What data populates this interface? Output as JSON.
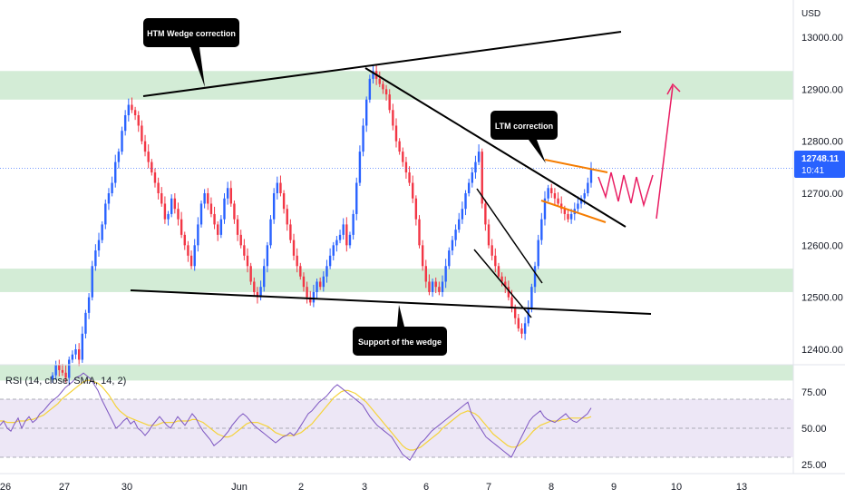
{
  "chart_data": [
    {
      "type": "candlestick",
      "currency": "USD",
      "ylim": [
        12330,
        13080
      ],
      "y_ticks": [
        "13000.00",
        "12900.00",
        "12800.00",
        "12700.00",
        "12600.00",
        "12500.00",
        "12400.00"
      ],
      "x_ticks": [
        "26",
        "27",
        "30",
        "Jun",
        "2",
        "3",
        "6",
        "7",
        "8",
        "9",
        "10",
        "13"
      ],
      "last_price": "12748.11",
      "countdown": "10:41",
      "support_zones": [
        [
          12880,
          12935
        ],
        [
          12510,
          12555
        ],
        [
          12340,
          12370
        ]
      ],
      "colors": {
        "up": "#2962ff",
        "down": "#f23645",
        "zone": "#d3ecd6",
        "projection": "#e91e63",
        "flag": "#f57c00",
        "price_line": "#2962ff"
      },
      "annotations": [
        "HTM Wedge correction",
        "LTM correction",
        "Support of the wedge"
      ],
      "closes": [
        12350,
        12370,
        12360,
        12355,
        12345,
        12380,
        12390,
        12400,
        12380,
        12430,
        12470,
        12500,
        12560,
        12590,
        12610,
        12640,
        12680,
        12700,
        12720,
        12760,
        12780,
        12820,
        12850,
        12870,
        12860,
        12850,
        12830,
        12800,
        12780,
        12760,
        12740,
        12720,
        12700,
        12680,
        12650,
        12660,
        12690,
        12670,
        12650,
        12620,
        12600,
        12580,
        12560,
        12600,
        12640,
        12680,
        12700,
        12680,
        12660,
        12640,
        12620,
        12650,
        12690,
        12710,
        12680,
        12650,
        12620,
        12600,
        12580,
        12560,
        12530,
        12510,
        12500,
        12520,
        12560,
        12600,
        12650,
        12700,
        12720,
        12700,
        12670,
        12640,
        12610,
        12580,
        12560,
        12540,
        12520,
        12500,
        12490,
        12510,
        12530,
        12520,
        12540,
        12560,
        12580,
        12600,
        12610,
        12620,
        12640,
        12600,
        12620,
        12660,
        12720,
        12780,
        12830,
        12880,
        12920,
        12935,
        12920,
        12910,
        12900,
        12890,
        12860,
        12830,
        12800,
        12780,
        12760,
        12740,
        12720,
        12690,
        12650,
        12600,
        12560,
        12530,
        12510,
        12530,
        12520,
        12510,
        12530,
        12560,
        12590,
        12610,
        12630,
        12650,
        12670,
        12700,
        12720,
        12740,
        12760,
        12780,
        12680,
        12640,
        12600,
        12580,
        12560,
        12540,
        12530,
        12520,
        12500,
        12480,
        12460,
        12440,
        12430,
        12450,
        12480,
        12520,
        12560,
        12610,
        12650,
        12690,
        12710,
        12700,
        12690,
        12680,
        12670,
        12660,
        12650,
        12660,
        12670,
        12680,
        12690,
        12700,
        12720,
        12748
      ],
      "rsi": {
        "title": "RSI (14, close, SMA, 14, 2)",
        "ylim": [
          20,
          95
        ],
        "y_ticks": [
          "75.00",
          "50.00",
          "25.00"
        ],
        "band": [
          30,
          70
        ],
        "colors": {
          "rsi": "#7e57c2",
          "sma": "#f5d33a",
          "band": "#ede7f6"
        },
        "values": [
          52,
          55,
          50,
          48,
          53,
          57,
          50,
          55,
          58,
          54,
          56,
          60,
          62,
          65,
          68,
          70,
          72,
          75,
          78,
          80,
          82,
          85,
          86,
          88,
          86,
          84,
          80,
          76,
          70,
          65,
          60,
          55,
          50,
          52,
          55,
          57,
          53,
          55,
          50,
          48,
          45,
          48,
          52,
          55,
          58,
          55,
          52,
          50,
          54,
          58,
          55,
          52,
          56,
          60,
          57,
          52,
          48,
          45,
          42,
          38,
          40,
          42,
          45,
          48,
          52,
          55,
          58,
          60,
          58,
          55,
          52,
          50,
          48,
          46,
          44,
          42,
          40,
          42,
          44,
          45,
          47,
          45,
          48,
          52,
          56,
          60,
          62,
          65,
          68,
          70,
          72,
          75,
          78,
          80,
          78,
          76,
          74,
          72,
          70,
          68,
          66,
          62,
          58,
          55,
          52,
          50,
          48,
          46,
          44,
          40,
          36,
          32,
          30,
          28,
          32,
          36,
          40,
          42,
          45,
          48,
          50,
          52,
          54,
          56,
          58,
          60,
          62,
          64,
          66,
          68,
          60,
          56,
          52,
          48,
          44,
          42,
          40,
          38,
          36,
          34,
          32,
          30,
          35,
          40,
          45,
          50,
          55,
          58,
          60,
          62,
          58,
          56,
          55,
          54,
          56,
          58,
          60,
          57,
          55,
          54,
          56,
          58,
          60,
          64
        ],
        "sma": [
          55,
          55,
          54,
          54,
          54,
          55,
          55,
          55,
          56,
          56,
          57,
          58,
          59,
          61,
          63,
          65,
          67,
          70,
          72,
          74,
          76,
          78,
          80,
          82,
          83,
          83,
          82,
          81,
          79,
          76,
          73,
          69,
          65,
          62,
          60,
          58,
          57,
          56,
          55,
          54,
          53,
          52,
          52,
          52,
          53,
          54,
          54,
          54,
          54,
          55,
          55,
          55,
          55,
          56,
          56,
          55,
          54,
          52,
          50,
          48,
          46,
          45,
          44,
          44,
          45,
          47,
          49,
          51,
          53,
          54,
          54,
          54,
          53,
          52,
          51,
          49,
          47,
          46,
          45,
          45,
          45,
          45,
          46,
          47,
          49,
          51,
          53,
          56,
          59,
          62,
          65,
          68,
          71,
          73,
          75,
          76,
          76,
          75,
          74,
          72,
          70,
          68,
          65,
          62,
          59,
          56,
          53,
          50,
          47,
          44,
          41,
          38,
          36,
          35,
          35,
          36,
          37,
          39,
          41,
          43,
          45,
          47,
          50,
          52,
          54,
          56,
          58,
          60,
          61,
          62,
          61,
          60,
          58,
          55,
          52,
          49,
          46,
          44,
          42,
          40,
          38,
          37,
          37,
          38,
          40,
          42,
          45,
          48,
          50,
          52,
          53,
          54,
          55,
          55,
          55,
          56,
          56,
          57,
          57,
          57,
          57,
          57,
          57,
          58
        ]
      }
    }
  ]
}
